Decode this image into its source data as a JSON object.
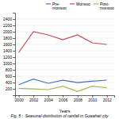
{
  "chart_data": {
    "type": "line",
    "title": "Fig. 5 :  Seasonal distribution of rainfall in Guwahati city",
    "xlabel": "Years",
    "x": [
      2000,
      2002,
      2004,
      2006,
      2008,
      2010,
      2012
    ],
    "series": [
      {
        "name": "Pre-\nmonsoo",
        "color": "#4472c4",
        "values": [
          330,
          510,
          375,
          470,
          395,
          440,
          475
        ]
      },
      {
        "name": "Monsoo",
        "color": "#c0504d",
        "values": [
          1350,
          2000,
          1900,
          1750,
          1900,
          1650,
          1600
        ]
      },
      {
        "name": "Post-\nmonsoo",
        "color": "#9bbb59",
        "values": [
          215,
          195,
          175,
          285,
          115,
          285,
          235
        ]
      }
    ],
    "xlim": [
      1999.5,
      2013
    ],
    "xticks": [
      2000,
      2002,
      2004,
      2006,
      2008,
      2010,
      2012
    ],
    "ylim": [
      0,
      2600
    ],
    "yticks": [
      200,
      400,
      600,
      800,
      1000,
      1200,
      1400,
      1600,
      1800,
      2000,
      2200,
      2400
    ],
    "grid": true,
    "legend": "upper right"
  }
}
